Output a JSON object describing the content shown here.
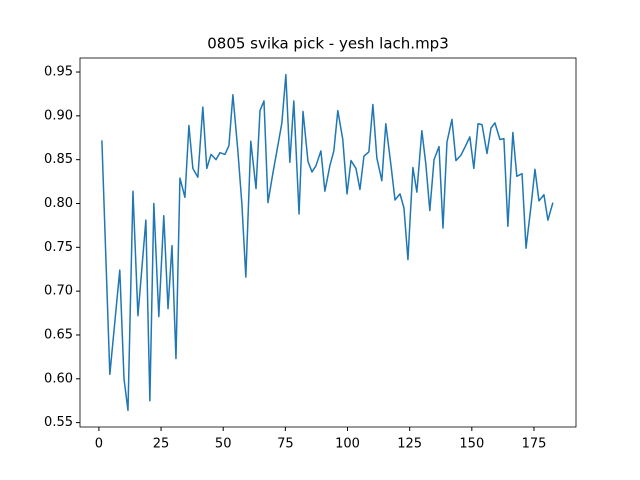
{
  "chart_data": {
    "type": "line",
    "title": "0805 svika pick - yesh lach.mp3",
    "x": [
      1.2,
      4.4,
      8.4,
      10.1,
      11.7,
      13.7,
      15.7,
      18.9,
      20.5,
      22.1,
      24.1,
      26.1,
      27.8,
      29.4,
      31.0,
      32.6,
      34.6,
      36.2,
      37.8,
      39.8,
      41.8,
      43.4,
      45.1,
      47.1,
      48.7,
      50.7,
      52.3,
      53.9,
      55.9,
      57.5,
      59.1,
      61.1,
      63.2,
      64.8,
      66.4,
      68.0,
      70.0,
      71.6,
      73.6,
      75.2,
      76.8,
      78.4,
      80.5,
      82.1,
      84.1,
      85.7,
      87.3,
      89.3,
      90.9,
      92.9,
      94.5,
      96.1,
      98.1,
      99.8,
      101.4,
      103.4,
      105.0,
      106.6,
      108.6,
      110.2,
      111.8,
      113.8,
      115.4,
      117.5,
      119.1,
      121.1,
      122.7,
      124.3,
      126.3,
      127.9,
      129.9,
      131.5,
      133.1,
      134.8,
      136.8,
      138.4,
      140.0,
      142.0,
      143.6,
      145.6,
      147.2,
      149.2,
      150.8,
      152.5,
      154.1,
      156.1,
      157.7,
      159.3,
      161.3,
      162.9,
      164.5,
      166.5,
      168.1,
      170.2,
      171.8,
      173.8,
      175.4,
      177.0,
      179.0,
      180.6,
      182.6
    ],
    "series": [
      {
        "color": "#1f77b4",
        "values": [
          0.872,
          0.605,
          0.724,
          0.6,
          0.564,
          0.814,
          0.672,
          0.781,
          0.575,
          0.8,
          0.671,
          0.786,
          0.68,
          0.752,
          0.623,
          0.829,
          0.807,
          0.889,
          0.84,
          0.83,
          0.91,
          0.84,
          0.856,
          0.85,
          0.858,
          0.856,
          0.866,
          0.924,
          0.86,
          0.8,
          0.716,
          0.871,
          0.817,
          0.906,
          0.917,
          0.801,
          0.835,
          0.86,
          0.892,
          0.947,
          0.847,
          0.917,
          0.788,
          0.905,
          0.848,
          0.836,
          0.843,
          0.86,
          0.814,
          0.843,
          0.86,
          0.906,
          0.873,
          0.811,
          0.849,
          0.84,
          0.816,
          0.854,
          0.859,
          0.913,
          0.852,
          0.826,
          0.891,
          0.843,
          0.804,
          0.811,
          0.795,
          0.736,
          0.841,
          0.813,
          0.883,
          0.845,
          0.792,
          0.85,
          0.865,
          0.772,
          0.87,
          0.896,
          0.849,
          0.855,
          0.864,
          0.876,
          0.84,
          0.891,
          0.89,
          0.857,
          0.886,
          0.892,
          0.873,
          0.874,
          0.774,
          0.881,
          0.831,
          0.834,
          0.749,
          0.797,
          0.839,
          0.803,
          0.81,
          0.781,
          0.801
        ]
      }
    ],
    "xlim": [
      -7.6,
      191.9
    ],
    "ylim": [
      0.545,
      0.966
    ],
    "xticks": [
      0,
      25,
      50,
      75,
      100,
      125,
      150,
      175
    ],
    "yticks": [
      {
        "value": 0.55,
        "label": "0.55"
      },
      {
        "value": 0.6,
        "label": "0.60"
      },
      {
        "value": 0.65,
        "label": "0.65"
      },
      {
        "value": 0.7,
        "label": "0.70"
      },
      {
        "value": 0.75,
        "label": "0.75"
      },
      {
        "value": 0.8,
        "label": "0.80"
      },
      {
        "value": 0.85,
        "label": "0.85"
      },
      {
        "value": 0.9,
        "label": "0.90"
      },
      {
        "value": 0.95,
        "label": "0.95"
      }
    ]
  }
}
